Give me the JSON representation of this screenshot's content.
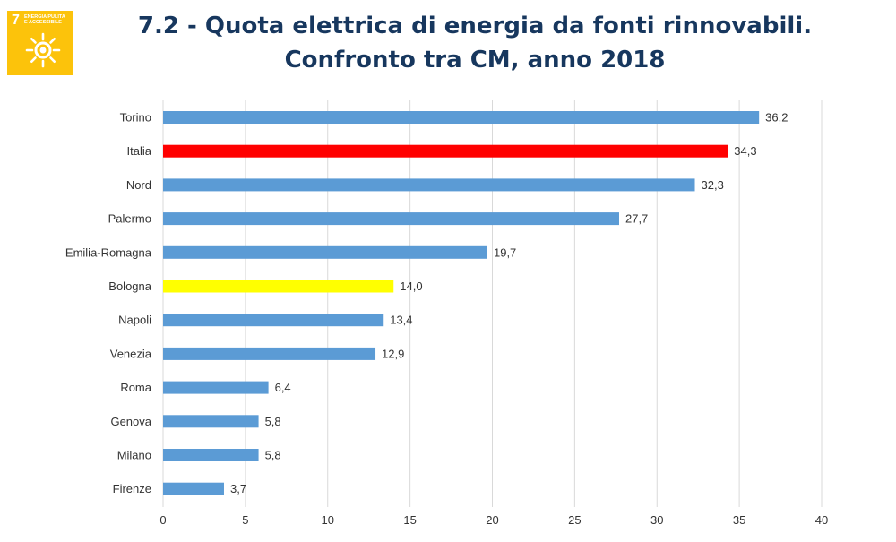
{
  "badge": {
    "number": "7",
    "text": "ENERGIA PULITA E ACCESSIBILE",
    "icon": "sun-icon",
    "color": "#fcc30b"
  },
  "title": {
    "line1": "7.2 - Quota elettrica di energia da fonti rinnovabili.",
    "line2": "Confronto tra CM, anno 2018"
  },
  "chart_data": {
    "type": "bar",
    "orientation": "horizontal",
    "categories": [
      "Torino",
      "Italia",
      "Nord",
      "Palermo",
      "Emilia-Romagna",
      "Bologna",
      "Napoli",
      "Venezia",
      "Roma",
      "Genova",
      "Milano",
      "Firenze"
    ],
    "values": [
      36.2,
      34.3,
      32.3,
      27.7,
      19.7,
      14.0,
      13.4,
      12.9,
      6.4,
      5.8,
      5.8,
      3.7
    ],
    "value_labels": [
      "36,2",
      "34,3",
      "32,3",
      "27,7",
      "19,7",
      "14,0",
      "13,4",
      "12,9",
      "6,4",
      "5,8",
      "5,8",
      "3,7"
    ],
    "bar_colors": [
      "#5b9bd5",
      "#ff0000",
      "#5b9bd5",
      "#5b9bd5",
      "#5b9bd5",
      "#ffff00",
      "#5b9bd5",
      "#5b9bd5",
      "#5b9bd5",
      "#5b9bd5",
      "#5b9bd5",
      "#5b9bd5"
    ],
    "xlim": [
      0,
      40
    ],
    "xticks": [
      0,
      5,
      10,
      15,
      20,
      25,
      30,
      35,
      40
    ],
    "grid": "vertical",
    "legend": "none"
  }
}
